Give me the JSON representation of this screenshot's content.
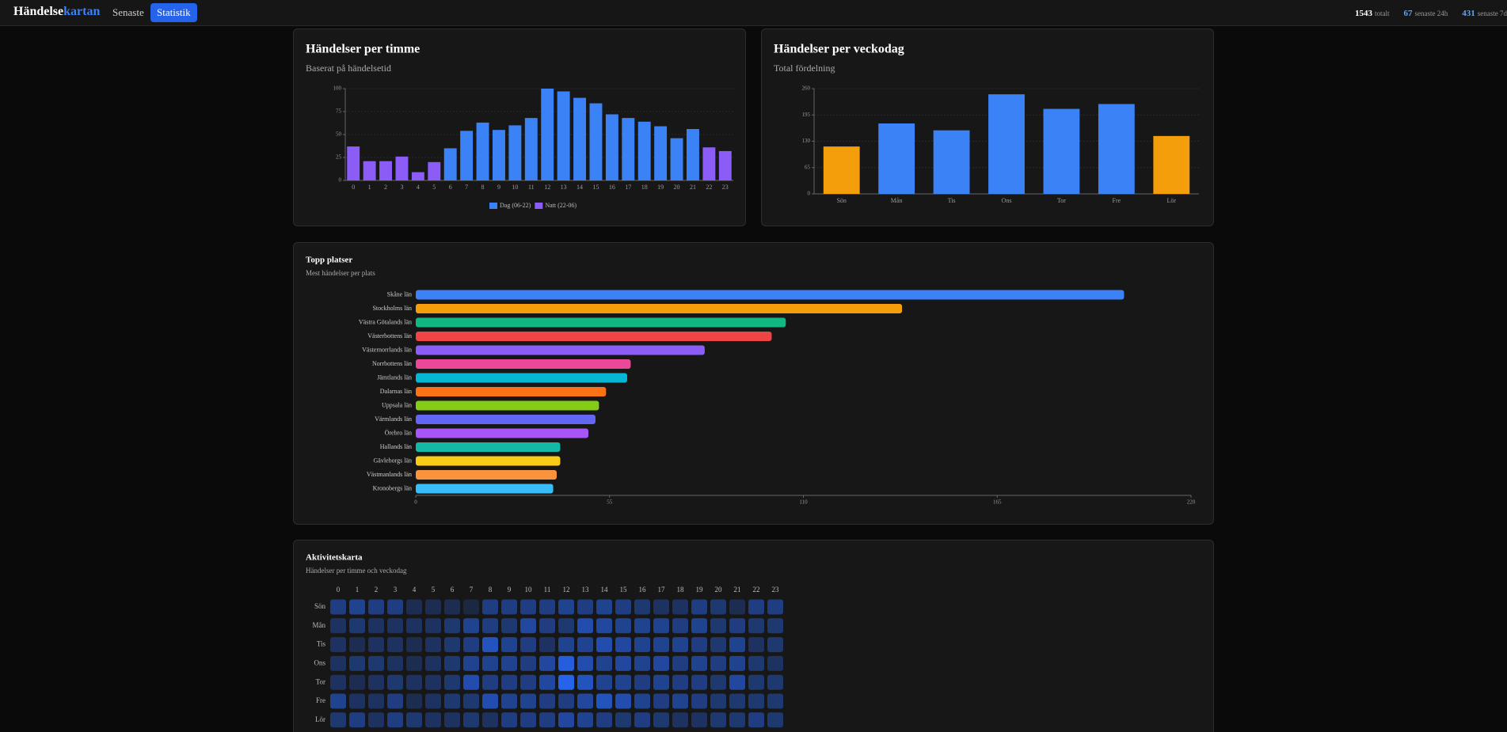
{
  "header": {
    "brand": "Händelse",
    "brand_accent": "kartan",
    "nav": [
      "Senaste",
      "Statistik"
    ],
    "stats": [
      {
        "value": 1543,
        "label": "totalt"
      },
      {
        "value": 67,
        "label": "senaste 24h"
      },
      {
        "value": 431,
        "label": "senaste 7d"
      }
    ]
  },
  "chart_data": [
    {
      "type": "bar",
      "title": "Händelser per timme",
      "subtitle": "Baserat på händelsetid",
      "categories": [
        0,
        1,
        2,
        3,
        4,
        5,
        6,
        7,
        8,
        9,
        10,
        11,
        12,
        13,
        14,
        15,
        16,
        17,
        18,
        19,
        20,
        21,
        22,
        23
      ],
      "series": [
        {
          "name": "Dag (06-22)",
          "color": "#3b82f6",
          "values": [
            null,
            null,
            null,
            null,
            null,
            null,
            35,
            54,
            63,
            55,
            60,
            68,
            100,
            97,
            90,
            84,
            72,
            68,
            64,
            59,
            46,
            56,
            null,
            null
          ]
        },
        {
          "name": "Natt (22-06)",
          "color": "#8b5cf6",
          "values": [
            37,
            21,
            21,
            26,
            9,
            20,
            null,
            null,
            null,
            null,
            null,
            null,
            null,
            null,
            null,
            null,
            null,
            null,
            null,
            null,
            null,
            null,
            36,
            32
          ]
        }
      ],
      "ylim": [
        0,
        100
      ],
      "yticks": [
        0,
        25,
        50,
        75,
        100
      ],
      "grid": true,
      "legend": "bottom"
    },
    {
      "type": "bar",
      "title": "Händelser per veckodag",
      "subtitle": "Total fördelning",
      "categories": [
        "Sön",
        "Mån",
        "Tis",
        "Ons",
        "Tor",
        "Fre",
        "Lör"
      ],
      "values": [
        117,
        174,
        157,
        246,
        210,
        222,
        143
      ],
      "colors": [
        "#f59e0b",
        "#3b82f6",
        "#3b82f6",
        "#3b82f6",
        "#3b82f6",
        "#3b82f6",
        "#f59e0b"
      ],
      "ylim": [
        0,
        260
      ],
      "yticks": [
        0,
        65,
        130,
        195,
        260
      ],
      "grid": true
    },
    {
      "type": "hbar",
      "title": "Topp platser",
      "subtitle": "Mest händelser per plats",
      "categories": [
        "Skåne län",
        "Stockholms län",
        "Västra Götalands län",
        "Västerbottens län",
        "Västernorrlands län",
        "Norrbottens län",
        "Jämtlands län",
        "Dalarnas län",
        "Uppsala län",
        "Värmlands län",
        "Örebro län",
        "Hallands län",
        "Gävleborgs län",
        "Västmanlands län",
        "Kronobergs län"
      ],
      "values": [
        201,
        138,
        105,
        101,
        82,
        61,
        60,
        54,
        52,
        51,
        49,
        41,
        41,
        40,
        39
      ],
      "colors": [
        "#3b82f6",
        "#f59e0b",
        "#10b981",
        "#ef4444",
        "#8b5cf6",
        "#ec4899",
        "#06b6d4",
        "#f97316",
        "#84cc16",
        "#6366f1",
        "#a855f7",
        "#14b8a6",
        "#facc15",
        "#fb923c",
        "#38bdf8"
      ],
      "xlim": [
        0,
        220
      ],
      "xticks": [
        0,
        55,
        110,
        165,
        220
      ]
    },
    {
      "type": "heatmap",
      "title": "Aktivitetskarta",
      "subtitle": "Händelser per timme och veckodag",
      "x": [
        0,
        1,
        2,
        3,
        4,
        5,
        6,
        7,
        8,
        9,
        10,
        11,
        12,
        13,
        14,
        15,
        16,
        17,
        18,
        19,
        20,
        21,
        22,
        23
      ],
      "y": [
        "Sön",
        "Mån",
        "Tis",
        "Ons",
        "Tor",
        "Fre",
        "Lör"
      ],
      "values": [
        [
          5,
          6,
          5,
          5,
          2,
          2,
          2,
          1,
          5,
          5,
          5,
          5,
          6,
          5,
          6,
          5,
          4,
          3,
          3,
          5,
          4,
          2,
          5,
          5
        ],
        [
          3,
          4,
          3,
          3,
          3,
          3,
          4,
          6,
          5,
          4,
          7,
          5,
          4,
          8,
          7,
          6,
          6,
          6,
          5,
          6,
          4,
          5,
          4,
          4
        ],
        [
          3,
          2,
          3,
          3,
          2,
          3,
          4,
          5,
          9,
          6,
          5,
          3,
          6,
          6,
          8,
          7,
          6,
          6,
          6,
          5,
          4,
          6,
          3,
          4
        ],
        [
          3,
          4,
          4,
          3,
          2,
          3,
          4,
          6,
          6,
          6,
          5,
          7,
          11,
          8,
          6,
          7,
          6,
          7,
          5,
          6,
          5,
          6,
          4,
          3
        ],
        [
          3,
          2,
          3,
          4,
          3,
          3,
          4,
          8,
          5,
          5,
          5,
          7,
          12,
          9,
          6,
          6,
          5,
          6,
          5,
          5,
          4,
          7,
          4,
          4
        ],
        [
          6,
          3,
          3,
          5,
          2,
          3,
          4,
          4,
          8,
          6,
          6,
          5,
          5,
          7,
          9,
          8,
          6,
          5,
          6,
          5,
          4,
          4,
          4,
          4
        ],
        [
          4,
          5,
          3,
          5,
          4,
          3,
          3,
          4,
          3,
          5,
          5,
          5,
          7,
          6,
          5,
          4,
          5,
          4,
          3,
          3,
          4,
          4,
          5,
          4
        ]
      ],
      "color_low": "#1b2233",
      "color_high": "#2563eb"
    }
  ]
}
